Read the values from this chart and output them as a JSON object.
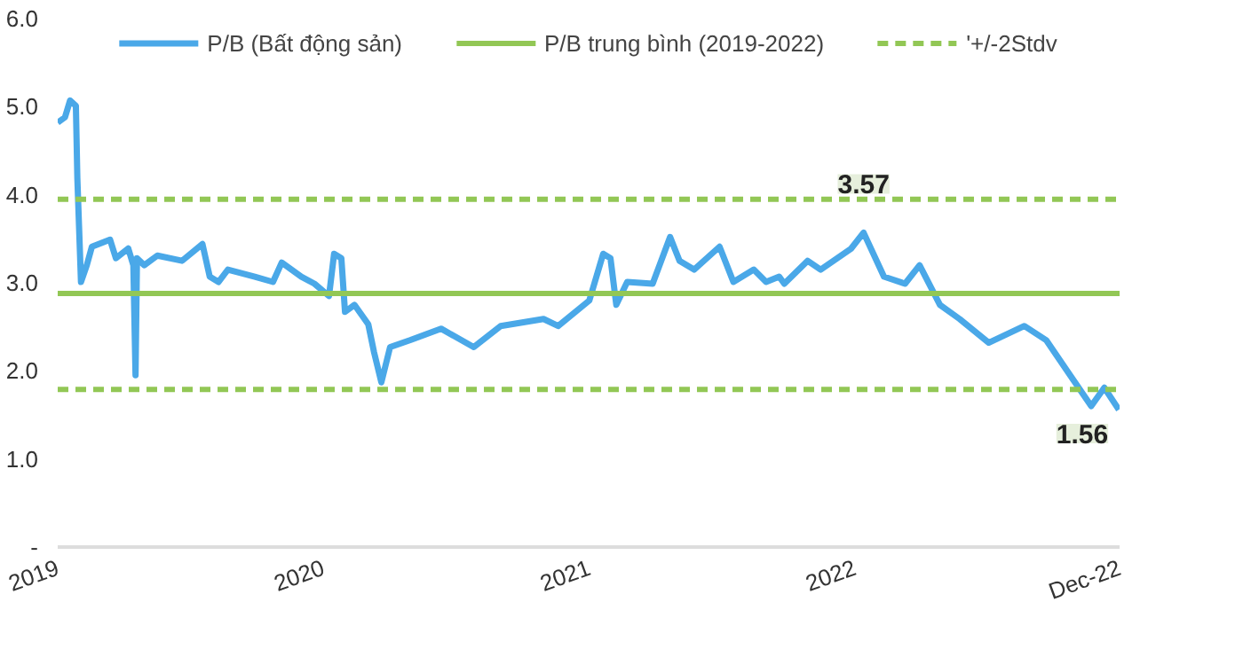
{
  "chart_data": {
    "type": "line",
    "legend": "top",
    "grid": false,
    "line_style": "solid",
    "marker": "none",
    "x": [
      "2019-01-01",
      "2019-01-11",
      "2019-01-18",
      "2019-01-26",
      "2019-01-28",
      "2019-02-02",
      "2019-02-10",
      "2019-02-17",
      "2019-03-14",
      "2019-03-22",
      "2019-04-08",
      "2019-04-15",
      "2019-04-18",
      "2019-04-20",
      "2019-04-30",
      "2019-05-18",
      "2019-06-21",
      "2019-07-19",
      "2019-07-29",
      "2019-08-10",
      "2019-08-23",
      "2019-09-29",
      "2019-10-24",
      "2019-11-05",
      "2019-12-02",
      "2019-12-20",
      "2020-01-09",
      "2020-01-16",
      "2020-01-26",
      "2020-01-31",
      "2020-02-13",
      "2020-03-03",
      "2020-03-11",
      "2020-03-21",
      "2020-04-02",
      "2020-04-30",
      "2020-06-11",
      "2020-07-26",
      "2020-09-01",
      "2020-10-30",
      "2020-11-19",
      "2021-01-01",
      "2021-01-20",
      "2021-01-30",
      "2021-02-07",
      "2021-02-22",
      "2021-03-29",
      "2021-04-22",
      "2021-05-05",
      "2021-05-25",
      "2021-06-29",
      "2021-07-18",
      "2021-08-15",
      "2021-09-01",
      "2021-09-19",
      "2021-09-26",
      "2021-10-28",
      "2021-11-15",
      "2021-12-27",
      "2022-01-13",
      "2022-02-10",
      "2022-03-11",
      "2022-03-31",
      "2022-04-28",
      "2022-05-25",
      "2022-07-04",
      "2022-08-22",
      "2022-09-21",
      "2022-10-24",
      "2022-11-22",
      "2022-12-10",
      "2022-12-30"
    ],
    "series": [
      {
        "name": "P/B (Bất động sản)",
        "color": "#4aa8e8",
        "values": [
          4.82,
          4.88,
          5.07,
          5.01,
          4.19,
          3.01,
          3.2,
          3.41,
          3.49,
          3.28,
          3.39,
          3.2,
          1.95,
          3.28,
          3.2,
          3.31,
          3.25,
          3.44,
          3.07,
          3.01,
          3.15,
          3.07,
          3.01,
          3.23,
          3.07,
          2.99,
          2.85,
          3.33,
          3.28,
          2.67,
          2.75,
          2.53,
          2.21,
          1.87,
          2.27,
          2.35,
          2.48,
          2.27,
          2.51,
          2.59,
          2.51,
          2.8,
          3.33,
          3.28,
          2.75,
          3.01,
          2.99,
          3.52,
          3.25,
          3.15,
          3.41,
          3.01,
          3.15,
          3.01,
          3.07,
          2.99,
          3.25,
          3.15,
          3.39,
          3.57,
          3.07,
          2.99,
          3.2,
          2.75,
          2.59,
          2.32,
          2.51,
          2.35,
          1.95,
          1.6,
          1.81,
          1.56
        ]
      }
    ],
    "xlim": [
      "2019-01-01",
      "2022-12-31"
    ],
    "xticks": [
      {
        "value": "2019-01-01",
        "label": "2019"
      },
      {
        "value": "2020-01-01",
        "label": "2020"
      },
      {
        "value": "2021-01-01",
        "label": "2021"
      },
      {
        "value": "2022-01-01",
        "label": "2022"
      },
      {
        "value": "2022-12-31",
        "label": "Dec-22"
      }
    ],
    "ylim": [
      0,
      6
    ],
    "yticks": [
      {
        "value": 0,
        "label": "-"
      },
      {
        "value": 1,
        "label": "1.0"
      },
      {
        "value": 2,
        "label": "2.0"
      },
      {
        "value": 3,
        "label": "3.0"
      },
      {
        "value": 4,
        "label": "4.0"
      },
      {
        "value": 5,
        "label": "5.0"
      },
      {
        "value": 6,
        "label": "6.0"
      }
    ],
    "ref_lines": [
      {
        "axis": "y",
        "value": 2.88,
        "label": "P/B trung bình (2019-2022)",
        "color": "#92c755",
        "line_style": "solid"
      },
      {
        "axis": "y",
        "value": 3.95,
        "label": "'+/-2Stdv",
        "color": "#92c755",
        "line_style": "dashed"
      },
      {
        "axis": "y",
        "value": 1.79,
        "label": null,
        "color": "#92c755",
        "line_style": "dashed"
      }
    ],
    "annotations": [
      {
        "text": "3.57",
        "x": "2022-01-13",
        "y": 3.57
      },
      {
        "text": "1.56",
        "x": "2022-12-30",
        "y": 1.56
      }
    ]
  }
}
